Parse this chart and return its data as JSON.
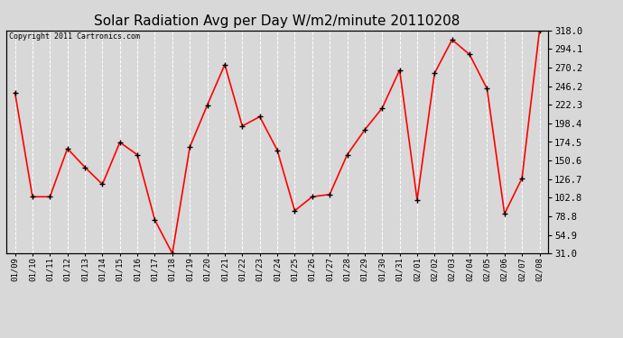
{
  "title": "Solar Radiation Avg per Day W/m2/minute 20110208",
  "copyright_text": "Copyright 2011 Cartronics.com",
  "labels": [
    "01/09",
    "01/10",
    "01/11",
    "01/12",
    "01/13",
    "01/14",
    "01/15",
    "01/16",
    "01/17",
    "01/18",
    "01/19",
    "01/20",
    "01/21",
    "01/22",
    "01/23",
    "01/24",
    "01/25",
    "01/26",
    "01/27",
    "01/28",
    "01/29",
    "01/30",
    "01/31",
    "02/01",
    "02/02",
    "02/03",
    "02/04",
    "02/05",
    "02/06",
    "02/07",
    "02/08"
  ],
  "values": [
    238,
    104,
    104,
    166,
    142,
    120,
    174,
    158,
    74,
    31,
    168,
    222,
    274,
    195,
    207,
    164,
    86,
    104,
    107,
    158,
    190,
    218,
    267,
    100,
    263,
    306,
    287,
    243,
    82,
    128,
    318
  ],
  "line_color": "red",
  "marker_color": "black",
  "bg_color": "#d8d8d8",
  "title_fontsize": 11,
  "ylim_min": 31.0,
  "ylim_max": 318.0,
  "ytick_values": [
    31.0,
    54.9,
    78.8,
    102.8,
    126.7,
    150.6,
    174.5,
    198.4,
    222.3,
    246.2,
    270.2,
    294.1,
    318.0
  ]
}
